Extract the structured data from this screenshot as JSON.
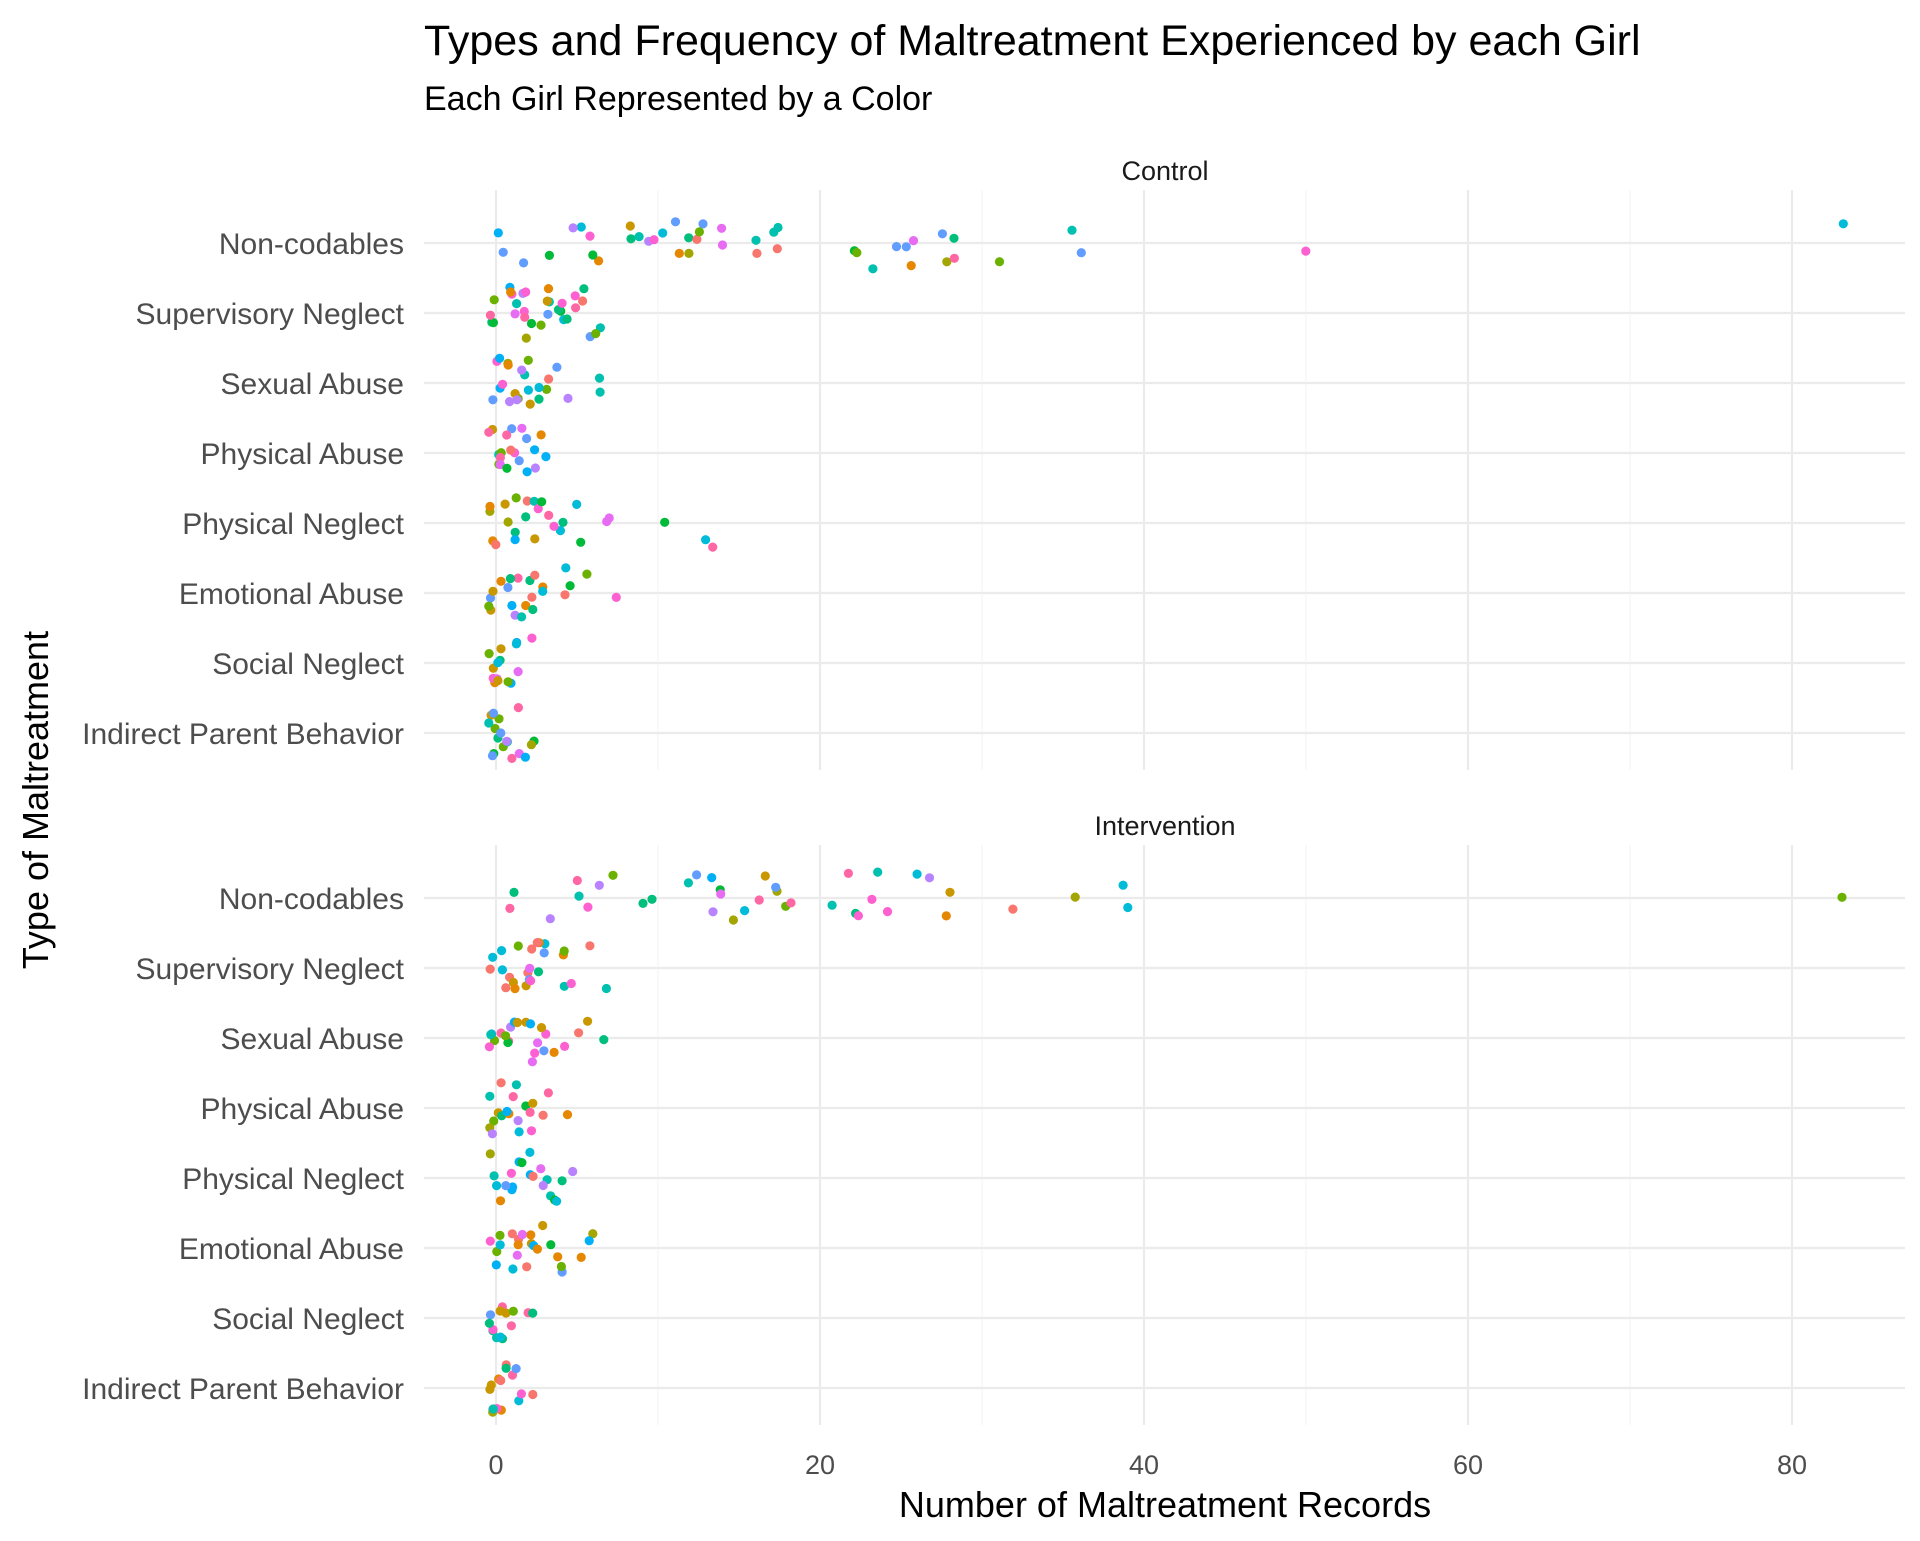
{
  "chart_data": {
    "type": "scatter",
    "title": "Types and Frequency of Maltreatment Experienced by each Girl",
    "subtitle": "Each Girl Represented by a Color",
    "xlabel": "Number of Maltreatment Records",
    "ylabel": "Type of Maltreatment",
    "xlim": [
      -4.5,
      87
    ],
    "x_ticks": [
      0,
      20,
      40,
      60,
      80
    ],
    "grid": true,
    "legend": "none",
    "categories": [
      "Non-codables",
      "Supervisory Neglect",
      "Sexual Abuse",
      "Physical Abuse",
      "Physical Neglect",
      "Emotional Abuse",
      "Social Neglect",
      "Indirect Parent Behavior"
    ],
    "panels": [
      {
        "label": "Control",
        "series": [
          {
            "category": "Non-codables",
            "x": [
              0,
              0,
              2,
              3,
              5,
              5,
              6,
              6,
              6,
              8,
              8,
              9,
              9,
              10,
              10,
              11,
              11,
              12,
              12,
              12,
              13,
              13,
              14,
              14,
              16,
              16,
              17,
              17,
              17,
              22,
              22,
              23,
              25,
              25,
              26,
              26,
              28,
              28,
              28,
              28,
              31,
              36,
              36,
              50,
              83
            ]
          },
          {
            "category": "Supervisory Neglect",
            "x": [
              0,
              0,
              0,
              0,
              1,
              1,
              1,
              1,
              1,
              2,
              2,
              2,
              2,
              2,
              2,
              3,
              3,
              3,
              3,
              3,
              4,
              4,
              4,
              4,
              4,
              5,
              5,
              5,
              5,
              6,
              6,
              6
            ]
          },
          {
            "category": "Sexual Abuse",
            "x": [
              0,
              0,
              0,
              0,
              0,
              1,
              1,
              1,
              1,
              1,
              1,
              2,
              2,
              2,
              2,
              2,
              3,
              3,
              3,
              3,
              4,
              4,
              6,
              6
            ]
          },
          {
            "category": "Physical Abuse",
            "x": [
              0,
              0,
              0,
              0,
              0,
              0,
              0,
              1,
              1,
              1,
              1,
              1,
              1,
              2,
              2,
              2,
              2,
              2,
              3,
              3
            ]
          },
          {
            "category": "Physical Neglect",
            "x": [
              0,
              0,
              0,
              0,
              1,
              1,
              1,
              1,
              1,
              2,
              2,
              2,
              2,
              3,
              3,
              3,
              4,
              4,
              4,
              5,
              5,
              7,
              7,
              10,
              13,
              13
            ]
          },
          {
            "category": "Emotional Abuse",
            "x": [
              0,
              0,
              0,
              0,
              0,
              1,
              1,
              1,
              1,
              1,
              2,
              2,
              2,
              2,
              2,
              2,
              3,
              3,
              4,
              4,
              5,
              6,
              7
            ]
          },
          {
            "category": "Social Neglect",
            "x": [
              0,
              0,
              0,
              0,
              0,
              0,
              0,
              0,
              0,
              1,
              1,
              1,
              1,
              1,
              2
            ]
          },
          {
            "category": "Indirect Parent Behavior",
            "x": [
              0,
              0,
              0,
              0,
              0,
              0,
              0,
              0,
              0,
              0,
              1,
              1,
              1,
              1,
              1,
              2,
              2,
              2
            ]
          }
        ]
      },
      {
        "label": "Intervention",
        "series": [
          {
            "category": "Non-codables",
            "x": [
              1,
              1,
              3,
              5,
              5,
              6,
              6,
              7,
              9,
              10,
              12,
              12,
              13,
              13,
              14,
              14,
              15,
              15,
              16,
              17,
              17,
              17,
              18,
              18,
              21,
              22,
              22,
              22,
              23,
              24,
              24,
              26,
              27,
              28,
              28,
              32,
              36,
              39,
              39,
              83
            ]
          },
          {
            "category": "Supervisory Neglect",
            "x": [
              0,
              0,
              0,
              0,
              1,
              1,
              1,
              1,
              1,
              2,
              2,
              2,
              2,
              2,
              2,
              3,
              3,
              3,
              3,
              3,
              4,
              4,
              4,
              5,
              6,
              7
            ]
          },
          {
            "category": "Sexual Abuse",
            "x": [
              0,
              0,
              0,
              0,
              0,
              1,
              1,
              1,
              1,
              1,
              1,
              2,
              2,
              2,
              2,
              3,
              3,
              3,
              3,
              4,
              4,
              5,
              6,
              7
            ]
          },
          {
            "category": "Physical Abuse",
            "x": [
              0,
              0,
              0,
              0,
              0,
              0,
              0,
              1,
              1,
              1,
              1,
              1,
              1,
              2,
              2,
              2,
              2,
              3,
              3,
              4
            ]
          },
          {
            "category": "Physical Neglect",
            "x": [
              0,
              0,
              0,
              0,
              1,
              1,
              1,
              1,
              1,
              2,
              2,
              2,
              2,
              3,
              3,
              3,
              3,
              4,
              4,
              4,
              5
            ]
          },
          {
            "category": "Emotional Abuse",
            "x": [
              0,
              0,
              0,
              0,
              0,
              1,
              1,
              1,
              1,
              1,
              2,
              2,
              2,
              2,
              2,
              3,
              3,
              3,
              4,
              4,
              4,
              5,
              6,
              6
            ]
          },
          {
            "category": "Social Neglect",
            "x": [
              0,
              0,
              0,
              0,
              0,
              0,
              0,
              0,
              0,
              1,
              1,
              1,
              2,
              2
            ]
          },
          {
            "category": "Indirect Parent Behavior",
            "x": [
              0,
              0,
              0,
              0,
              0,
              0,
              0,
              0,
              0,
              1,
              1,
              1,
              1,
              1,
              2,
              2
            ]
          }
        ]
      }
    ]
  },
  "colors": {
    "palette": [
      "#F8766D",
      "#E58700",
      "#C99800",
      "#A3A500",
      "#6BB100",
      "#00BA38",
      "#00BF7D",
      "#00C0AF",
      "#00BCD8",
      "#00B0F6",
      "#619CFF",
      "#B983FF",
      "#E76BF3",
      "#FD61D1",
      "#FF67A4"
    ],
    "grid": "#ebebeb"
  }
}
